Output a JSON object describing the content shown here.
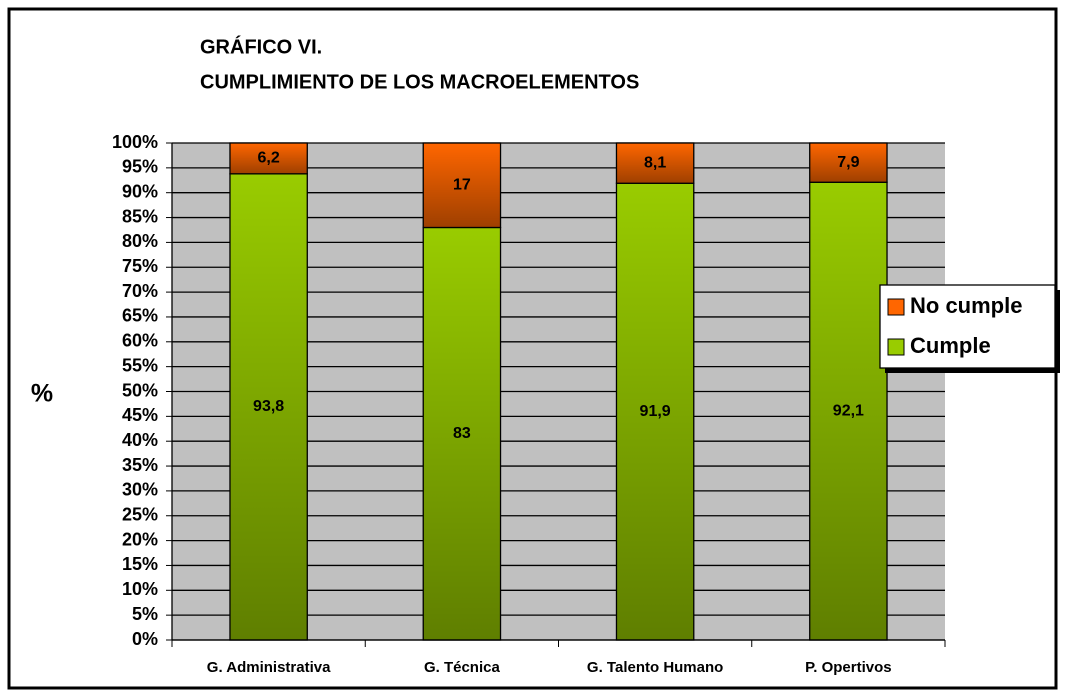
{
  "chart_data": {
    "type": "stacked_bar",
    "title": "GRÁFICO VI.",
    "subtitle": "CUMPLIMIENTO DE LOS MACROELEMENTOS",
    "y_label": "%",
    "categories": [
      "G. Administrativa",
      "G. Técnica",
      "G. Talento Humano",
      "P. Opertivos"
    ],
    "series": [
      {
        "name": "Cumple",
        "color": "#99cc00",
        "values": [
          93.8,
          83,
          91.9,
          92.1
        ],
        "value_labels": [
          "93,8",
          "83",
          "91,9",
          "92,1"
        ]
      },
      {
        "name": "No cumple",
        "color": "#ff6600",
        "values": [
          6.2,
          17,
          8.1,
          7.9
        ],
        "value_labels": [
          "6,2",
          "17",
          "8,1",
          "7,9"
        ]
      }
    ],
    "ylim": [
      0,
      100
    ],
    "yticks": [
      {
        "value": 0,
        "label": "0%"
      },
      {
        "value": 5,
        "label": "5%"
      },
      {
        "value": 10,
        "label": "10%"
      },
      {
        "value": 15,
        "label": "15%"
      },
      {
        "value": 20,
        "label": "20%"
      },
      {
        "value": 25,
        "label": "25%"
      },
      {
        "value": 30,
        "label": "30%"
      },
      {
        "value": 35,
        "label": "35%"
      },
      {
        "value": 40,
        "label": "40%"
      },
      {
        "value": 45,
        "label": "45%"
      },
      {
        "value": 50,
        "label": "50%"
      },
      {
        "value": 55,
        "label": "55%"
      },
      {
        "value": 60,
        "label": "60%"
      },
      {
        "value": 65,
        "label": "65%"
      },
      {
        "value": 70,
        "label": "70%"
      },
      {
        "value": 75,
        "label": "75%"
      },
      {
        "value": 80,
        "label": "80%"
      },
      {
        "value": 85,
        "label": "85%"
      },
      {
        "value": 90,
        "label": "90%"
      },
      {
        "value": 95,
        "label": "95%"
      },
      {
        "value": 100,
        "label": "100%"
      }
    ],
    "grid": true,
    "legend": "right"
  }
}
